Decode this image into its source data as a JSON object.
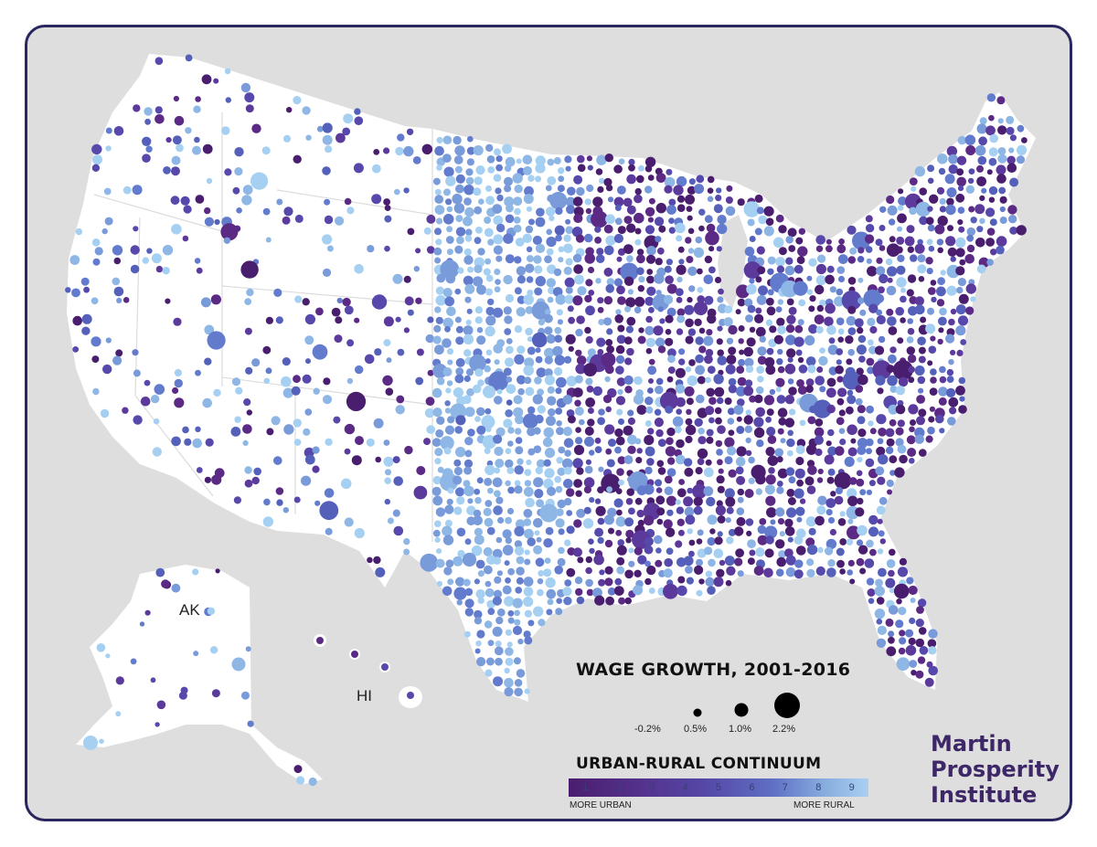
{
  "map": {
    "label_alaska": "AK",
    "label_hawaii": "HI",
    "land_color": "#ffffff",
    "water_color": "#dedede"
  },
  "legend": {
    "size_title": "WAGE GROWTH, 2001-2016",
    "size_items": [
      {
        "label": "-0.2%",
        "value": -0.2
      },
      {
        "label": "0.5%",
        "value": 0.5
      },
      {
        "label": "1.0%",
        "value": 1.0
      },
      {
        "label": "2.2%",
        "value": 2.2
      }
    ],
    "color_title": "URBAN-RURAL CONTINUUM",
    "color_steps": [
      "1",
      "2",
      "3",
      "4",
      "5",
      "6",
      "7",
      "8",
      "9"
    ],
    "color_left": "MORE URBAN",
    "color_right": "MORE RURAL",
    "palette": [
      "#4a1e6e",
      "#5a2a84",
      "#5b3a9c",
      "#5649ab",
      "#5560bb",
      "#627bcd",
      "#7a9bd9",
      "#8fb7e6",
      "#a6d0f2"
    ]
  },
  "logo": {
    "line1": "Martin",
    "line2": "Prosperity",
    "line3": "Institute",
    "color": "#3d2767"
  }
}
